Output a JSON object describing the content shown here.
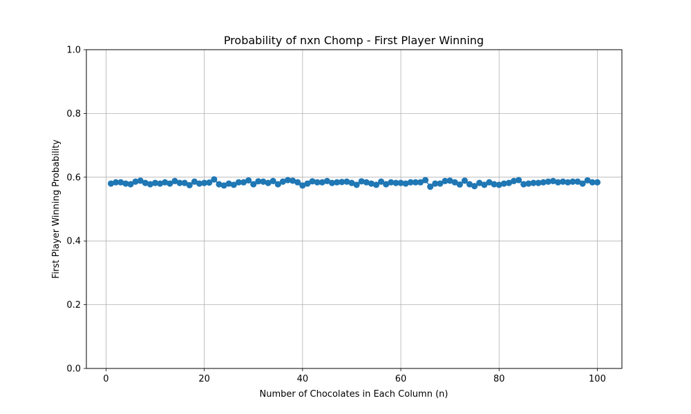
{
  "chart_data": {
    "type": "line",
    "title": "Probability of nxn Chomp - First Player Winning",
    "xlabel": "Number of Chocolates in Each Column (n)",
    "ylabel": "First Player Winning Probability",
    "xlim": [
      -4,
      105
    ],
    "ylim": [
      0,
      1
    ],
    "xticks": [
      0,
      20,
      40,
      60,
      80,
      100
    ],
    "yticks": [
      0.0,
      0.2,
      0.4,
      0.6,
      0.8,
      1.0
    ],
    "ytick_labels": [
      "0.0",
      "0.2",
      "0.4",
      "0.6",
      "0.8",
      "1.0"
    ],
    "grid": true,
    "markers": true,
    "color": "#1f77b4",
    "series": [
      {
        "x": [
          1,
          2,
          3,
          4,
          5,
          6,
          7,
          8,
          9,
          10,
          11,
          12,
          13,
          14,
          15,
          16,
          17,
          18,
          19,
          20,
          21,
          22,
          23,
          24,
          25,
          26,
          27,
          28,
          29,
          30,
          31,
          32,
          33,
          34,
          35,
          36,
          37,
          38,
          39,
          40,
          41,
          42,
          43,
          44,
          45,
          46,
          47,
          48,
          49,
          50,
          51,
          52,
          53,
          54,
          55,
          56,
          57,
          58,
          59,
          60,
          61,
          62,
          63,
          64,
          65,
          66,
          67,
          68,
          69,
          70,
          71,
          72,
          73,
          74,
          75,
          76,
          77,
          78,
          79,
          80,
          81,
          82,
          83,
          84,
          85,
          86,
          87,
          88,
          89,
          90,
          91,
          92,
          93,
          94,
          95,
          96,
          97,
          98,
          99,
          100
        ],
        "values": [
          0.58,
          0.584,
          0.584,
          0.58,
          0.578,
          0.586,
          0.589,
          0.582,
          0.578,
          0.582,
          0.58,
          0.584,
          0.58,
          0.588,
          0.582,
          0.582,
          0.575,
          0.586,
          0.58,
          0.582,
          0.583,
          0.593,
          0.578,
          0.574,
          0.58,
          0.576,
          0.584,
          0.584,
          0.59,
          0.578,
          0.587,
          0.586,
          0.582,
          0.588,
          0.578,
          0.586,
          0.591,
          0.589,
          0.584,
          0.574,
          0.58,
          0.587,
          0.584,
          0.584,
          0.588,
          0.582,
          0.584,
          0.585,
          0.586,
          0.582,
          0.576,
          0.587,
          0.584,
          0.58,
          0.576,
          0.586,
          0.578,
          0.584,
          0.582,
          0.582,
          0.58,
          0.584,
          0.584,
          0.584,
          0.591,
          0.57,
          0.58,
          0.58,
          0.588,
          0.589,
          0.584,
          0.577,
          0.589,
          0.578,
          0.572,
          0.582,
          0.576,
          0.584,
          0.578,
          0.576,
          0.58,
          0.582,
          0.588,
          0.591,
          0.578,
          0.58,
          0.582,
          0.582,
          0.584,
          0.586,
          0.588,
          0.584,
          0.586,
          0.584,
          0.586,
          0.586,
          0.58,
          0.59,
          0.584,
          0.584
        ]
      }
    ]
  }
}
